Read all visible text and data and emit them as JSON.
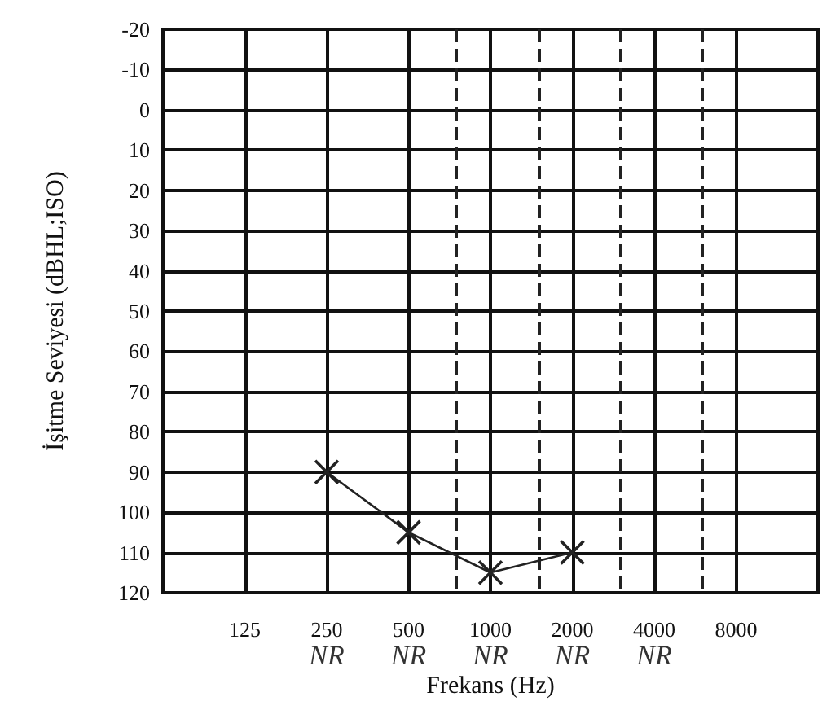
{
  "chart_data": {
    "type": "line",
    "xlabel": "Frekans (Hz)",
    "ylabel": "İşitme Seviyesi (dBHL;ISO)",
    "log": "x",
    "xlim": [
      62.5,
      16000
    ],
    "xticks": [
      125,
      250,
      500,
      1000,
      2000,
      4000,
      8000
    ],
    "ylim": [
      120,
      -20
    ],
    "yticks": [
      -20,
      -10,
      0,
      10,
      20,
      30,
      40,
      50,
      60,
      70,
      80,
      90,
      100,
      110,
      120
    ],
    "grid": true,
    "marker": "cross",
    "line_style": "solid",
    "series": [
      {
        "color": "#222222",
        "x": [
          250,
          500,
          1000,
          2000
        ],
        "values": [
          90,
          105,
          115,
          110
        ]
      }
    ],
    "ref_lines": [
      {
        "axis": "x",
        "value": 750,
        "color": "#222222",
        "line_style": "dashed"
      },
      {
        "axis": "x",
        "value": 1500,
        "color": "#222222",
        "line_style": "dashed"
      },
      {
        "axis": "x",
        "value": 3000,
        "color": "#222222",
        "line_style": "dashed"
      },
      {
        "axis": "x",
        "value": 6000,
        "color": "#222222",
        "line_style": "dashed"
      }
    ],
    "annotations": [
      "NR",
      "NR",
      "NR",
      "NR",
      "NR"
    ]
  }
}
